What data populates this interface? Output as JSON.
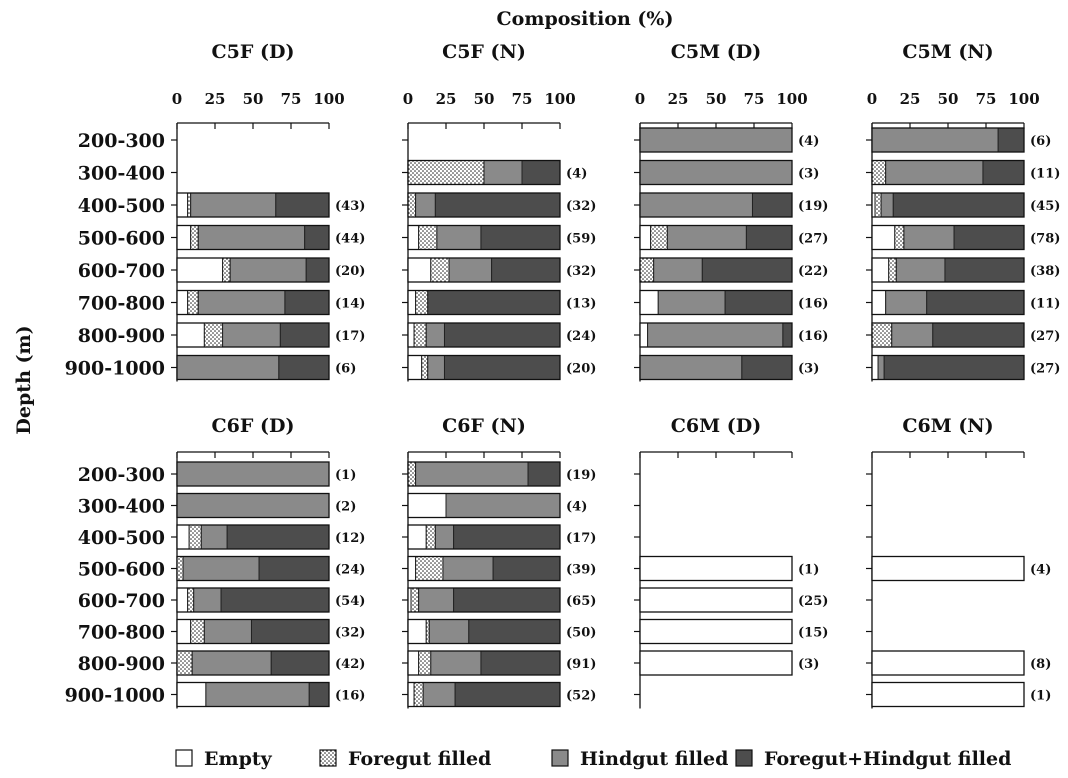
{
  "figure": {
    "xlabel": "Composition (%)",
    "ylabel": "Depth (m)",
    "x_ticks": [
      0,
      25,
      50,
      75,
      100
    ],
    "depth_categories": [
      "200-300",
      "300-400",
      "400-500",
      "500-600",
      "600-700",
      "700-800",
      "800-900",
      "900-1000"
    ]
  },
  "legend": [
    {
      "name": "Empty",
      "color": "#ffffff",
      "pattern": "none"
    },
    {
      "name": "Foregut filled",
      "color": "#ffffff",
      "pattern": "dots"
    },
    {
      "name": "Hindgut filled",
      "color": "#8a8a8a",
      "pattern": "none"
    },
    {
      "name": "Foregut+Hindgut filled",
      "color": "#4d4d4d",
      "pattern": "none"
    }
  ],
  "chart_data": [
    {
      "type": "bar",
      "stacked": true,
      "orientation": "horizontal",
      "title": "C5F (D)",
      "xlim": [
        0,
        100
      ],
      "categories": [
        "200-300",
        "300-400",
        "400-500",
        "500-600",
        "600-700",
        "700-800",
        "800-900",
        "900-1000"
      ],
      "counts": [
        null,
        null,
        "(43)",
        "(44)",
        "(20)",
        "(14)",
        "(17)",
        "(6)"
      ],
      "series": [
        {
          "name": "Empty",
          "values": [
            null,
            null,
            7,
            9,
            30,
            7,
            18,
            0
          ]
        },
        {
          "name": "Foregut filled",
          "values": [
            null,
            null,
            2,
            5,
            5,
            7,
            12,
            0
          ]
        },
        {
          "name": "Hindgut filled",
          "values": [
            null,
            null,
            56,
            70,
            50,
            57,
            38,
            67
          ]
        },
        {
          "name": "Foregut+Hindgut filled",
          "values": [
            null,
            null,
            35,
            16,
            15,
            29,
            32,
            33
          ]
        }
      ]
    },
    {
      "type": "bar",
      "stacked": true,
      "orientation": "horizontal",
      "title": "C5F (N)",
      "xlim": [
        0,
        100
      ],
      "categories": [
        "200-300",
        "300-400",
        "400-500",
        "500-600",
        "600-700",
        "700-800",
        "800-900",
        "900-1000"
      ],
      "counts": [
        null,
        "(4)",
        "(32)",
        "(59)",
        "(32)",
        "(13)",
        "(24)",
        "(20)"
      ],
      "series": [
        {
          "name": "Empty",
          "values": [
            null,
            0,
            0,
            7,
            15,
            5,
            4,
            9
          ]
        },
        {
          "name": "Foregut filled",
          "values": [
            null,
            50,
            5,
            12,
            12,
            8,
            8,
            4
          ]
        },
        {
          "name": "Hindgut filled",
          "values": [
            null,
            25,
            13,
            29,
            28,
            0,
            12,
            11
          ]
        },
        {
          "name": "Foregut+Hindgut filled",
          "values": [
            null,
            25,
            82,
            52,
            45,
            87,
            76,
            76
          ]
        }
      ]
    },
    {
      "type": "bar",
      "stacked": true,
      "orientation": "horizontal",
      "title": "C5M (D)",
      "xlim": [
        0,
        100
      ],
      "categories": [
        "200-300",
        "300-400",
        "400-500",
        "500-600",
        "600-700",
        "700-800",
        "800-900",
        "900-1000"
      ],
      "counts": [
        "(4)",
        "(3)",
        "(19)",
        "(27)",
        "(22)",
        "(16)",
        "(16)",
        "(3)"
      ],
      "series": [
        {
          "name": "Empty",
          "values": [
            0,
            0,
            0,
            7,
            0,
            12,
            5,
            0
          ]
        },
        {
          "name": "Foregut filled",
          "values": [
            0,
            0,
            0,
            11,
            9,
            0,
            0,
            0
          ]
        },
        {
          "name": "Hindgut filled",
          "values": [
            100,
            100,
            74,
            52,
            32,
            44,
            89,
            67
          ]
        },
        {
          "name": "Foregut+Hindgut filled",
          "values": [
            0,
            0,
            26,
            30,
            59,
            44,
            6,
            33
          ]
        }
      ]
    },
    {
      "type": "bar",
      "stacked": true,
      "orientation": "horizontal",
      "title": "C5M (N)",
      "xlim": [
        0,
        100
      ],
      "categories": [
        "200-300",
        "300-400",
        "400-500",
        "500-600",
        "600-700",
        "700-800",
        "800-900",
        "900-1000"
      ],
      "counts": [
        "(6)",
        "(11)",
        "(45)",
        "(78)",
        "(38)",
        "(11)",
        "(27)",
        "(27)"
      ],
      "series": [
        {
          "name": "Empty",
          "values": [
            0,
            0,
            2,
            15,
            11,
            9,
            0,
            4
          ]
        },
        {
          "name": "Foregut filled",
          "values": [
            0,
            9,
            4,
            6,
            5,
            0,
            13,
            0
          ]
        },
        {
          "name": "Hindgut filled",
          "values": [
            83,
            64,
            8,
            33,
            32,
            27,
            27,
            4
          ]
        },
        {
          "name": "Foregut+Hindgut filled",
          "values": [
            17,
            27,
            86,
            46,
            52,
            64,
            60,
            92
          ]
        }
      ]
    },
    {
      "type": "bar",
      "stacked": true,
      "orientation": "horizontal",
      "title": "C6F (D)",
      "xlim": [
        0,
        100
      ],
      "categories": [
        "200-300",
        "300-400",
        "400-500",
        "500-600",
        "600-700",
        "700-800",
        "800-900",
        "900-1000"
      ],
      "counts": [
        "(1)",
        "(2)",
        "(12)",
        "(24)",
        "(54)",
        "(32)",
        "(42)",
        "(16)"
      ],
      "series": [
        {
          "name": "Empty",
          "values": [
            0,
            0,
            8,
            0,
            7,
            9,
            0,
            19
          ]
        },
        {
          "name": "Foregut filled",
          "values": [
            0,
            0,
            8,
            4,
            4,
            9,
            10,
            0
          ]
        },
        {
          "name": "Hindgut filled",
          "values": [
            100,
            100,
            17,
            50,
            18,
            31,
            52,
            68
          ]
        },
        {
          "name": "Foregut+Hindgut filled",
          "values": [
            0,
            0,
            67,
            46,
            71,
            51,
            38,
            13
          ]
        }
      ]
    },
    {
      "type": "bar",
      "stacked": true,
      "orientation": "horizontal",
      "title": "C6F (N)",
      "xlim": [
        0,
        100
      ],
      "categories": [
        "200-300",
        "300-400",
        "400-500",
        "500-600",
        "600-700",
        "700-800",
        "800-900",
        "900-1000"
      ],
      "counts": [
        "(19)",
        "(4)",
        "(17)",
        "(39)",
        "(65)",
        "(50)",
        "(91)",
        "(52)"
      ],
      "series": [
        {
          "name": "Empty",
          "values": [
            0,
            25,
            12,
            5,
            2,
            12,
            7,
            4
          ]
        },
        {
          "name": "Foregut filled",
          "values": [
            5,
            0,
            6,
            18,
            5,
            2,
            8,
            6
          ]
        },
        {
          "name": "Hindgut filled",
          "values": [
            74,
            75,
            12,
            33,
            23,
            26,
            33,
            21
          ]
        },
        {
          "name": "Foregut+Hindgut filled",
          "values": [
            21,
            0,
            70,
            44,
            70,
            60,
            52,
            69
          ]
        }
      ]
    },
    {
      "type": "bar",
      "stacked": true,
      "orientation": "horizontal",
      "title": "C6M (D)",
      "xlim": [
        0,
        100
      ],
      "categories": [
        "200-300",
        "300-400",
        "400-500",
        "500-600",
        "600-700",
        "700-800",
        "800-900",
        "900-1000"
      ],
      "counts": [
        null,
        null,
        null,
        "(1)",
        "(25)",
        "(15)",
        "(3)",
        null
      ],
      "series": [
        {
          "name": "Empty",
          "values": [
            null,
            null,
            null,
            100,
            100,
            100,
            100,
            null
          ]
        },
        {
          "name": "Foregut filled",
          "values": [
            null,
            null,
            null,
            0,
            0,
            0,
            0,
            null
          ]
        },
        {
          "name": "Hindgut filled",
          "values": [
            null,
            null,
            null,
            0,
            0,
            0,
            0,
            null
          ]
        },
        {
          "name": "Foregut+Hindgut filled",
          "values": [
            null,
            null,
            null,
            0,
            0,
            0,
            0,
            null
          ]
        }
      ]
    },
    {
      "type": "bar",
      "stacked": true,
      "orientation": "horizontal",
      "title": "C6M (N)",
      "xlim": [
        0,
        100
      ],
      "categories": [
        "200-300",
        "300-400",
        "400-500",
        "500-600",
        "600-700",
        "700-800",
        "800-900",
        "900-1000"
      ],
      "counts": [
        null,
        null,
        null,
        "(4)",
        null,
        null,
        "(8)",
        "(1)"
      ],
      "series": [
        {
          "name": "Empty",
          "values": [
            null,
            null,
            null,
            100,
            null,
            null,
            100,
            100
          ]
        },
        {
          "name": "Foregut filled",
          "values": [
            null,
            null,
            null,
            0,
            null,
            null,
            0,
            0
          ]
        },
        {
          "name": "Hindgut filled",
          "values": [
            null,
            null,
            null,
            0,
            null,
            null,
            0,
            0
          ]
        },
        {
          "name": "Foregut+Hindgut filled",
          "values": [
            null,
            null,
            null,
            0,
            null,
            null,
            0,
            0
          ]
        }
      ]
    }
  ]
}
